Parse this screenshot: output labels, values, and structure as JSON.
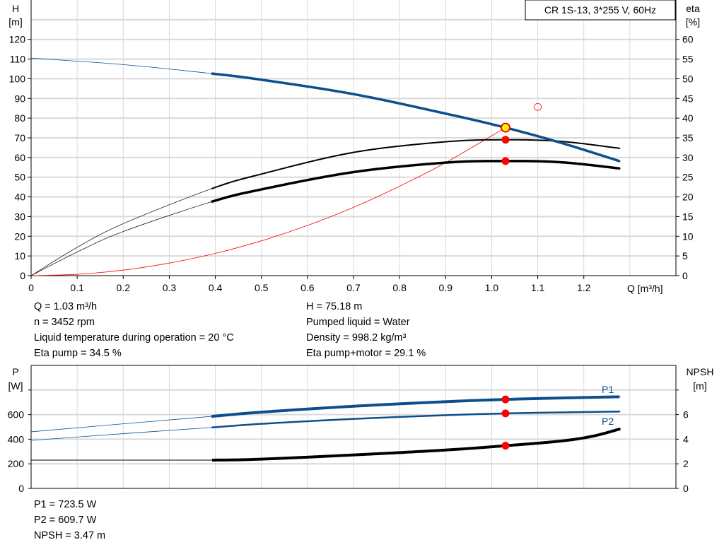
{
  "legend_box": "CR 1S-13, 3*255 V, 60Hz",
  "info_top_left": [
    "Q = 1.03 m³/h",
    "n = 3452 rpm",
    "Liquid temperature during operation = 20 °C",
    "Eta pump = 34.5 %"
  ],
  "info_top_right": [
    "H = 75.18 m",
    "Pumped liquid = Water",
    "Density = 998.2 kg/m³",
    "Eta pump+motor = 29.1 %"
  ],
  "info_bottom": [
    "P1 = 723.5 W",
    "P2 = 609.7 W",
    "NPSH = 3.47 m"
  ],
  "colors": {
    "head": "#0b4f8c",
    "power": "#0b4f8c",
    "eta": "#000000",
    "system": "#ff0000",
    "duty_point": "#ff0000",
    "operating_point_fill": "#ffff00",
    "grid": "#d9d9d9"
  },
  "chart_data": [
    {
      "type": "line",
      "xlabel": "Q [m³/h]",
      "ylabel_left": [
        "H",
        "[m]"
      ],
      "ylabel_right": [
        "eta",
        "[%]"
      ],
      "xlim": [
        0,
        1.4
      ],
      "ylim_left": [
        0,
        140
      ],
      "ylim_right": [
        0,
        70
      ],
      "xticks": [
        "0",
        "0.1",
        "0.2",
        "0.3",
        "0.4",
        "0.5",
        "0.6",
        "0.7",
        "0.8",
        "0.9",
        "1.0",
        "1.1",
        "1.2"
      ],
      "yticks_left": [
        "0",
        "10",
        "20",
        "30",
        "40",
        "50",
        "60",
        "70",
        "80",
        "90",
        "100",
        "110",
        "120"
      ],
      "yticks_right": [
        "0",
        "5",
        "10",
        "15",
        "20",
        "25",
        "30",
        "35",
        "40",
        "45",
        "50",
        "55",
        "60"
      ],
      "grid": true,
      "operating_range": [
        0.39,
        1.28
      ],
      "series": [
        {
          "key": "H",
          "axis": "left",
          "x": [
            0,
            0.2,
            0.39,
            0.5,
            0.7,
            0.9,
            1.03,
            1.15,
            1.28
          ],
          "y": [
            110.5,
            107.2,
            102.7,
            99.5,
            92.2,
            82.3,
            75.18,
            67.5,
            58.0
          ]
        },
        {
          "key": "eta_pump",
          "axis": "right",
          "x": [
            0,
            0.1,
            0.2,
            0.39,
            0.5,
            0.7,
            0.9,
            1.03,
            1.15,
            1.28
          ],
          "y": [
            0,
            7.2,
            13.2,
            22.0,
            25.8,
            31.3,
            34.0,
            34.5,
            34.1,
            32.3
          ]
        },
        {
          "key": "eta_pump_motor",
          "axis": "right",
          "x": [
            0,
            0.1,
            0.2,
            0.39,
            0.5,
            0.7,
            0.9,
            1.03,
            1.15,
            1.28
          ],
          "y": [
            0,
            6.0,
            11.2,
            18.7,
            21.9,
            26.3,
            28.7,
            29.1,
            28.8,
            27.2
          ]
        },
        {
          "key": "system",
          "axis": "left",
          "x": [
            0,
            0.1,
            0.2,
            0.3,
            0.4,
            0.5,
            0.6,
            0.7,
            0.8,
            0.9,
            1.03
          ],
          "y": [
            0,
            0.7,
            2.8,
            6.4,
            11.3,
            17.7,
            25.5,
            34.7,
            45.4,
            57.4,
            75.18
          ]
        }
      ],
      "operating_point": {
        "x": 1.03,
        "H": 75.18,
        "eta_pump": 34.5,
        "eta_pump_motor": 29.1
      },
      "open_marker": {
        "x": 1.1,
        "H": 85.7
      }
    },
    {
      "type": "line",
      "ylabel_left": [
        "P",
        "[W]"
      ],
      "ylabel_right": [
        "NPSH",
        "[m]"
      ],
      "xlim": [
        0,
        1.4
      ],
      "ylim_left": [
        0,
        1000
      ],
      "ylim_right": [
        0,
        10
      ],
      "yticks_left": [
        "0",
        "200",
        "400",
        "600"
      ],
      "yticks_right": [
        "0",
        "2",
        "4",
        "6"
      ],
      "grid": true,
      "series": [
        {
          "key": "P1",
          "name": "P1",
          "axis": "left",
          "x": [
            0,
            0.2,
            0.39,
            0.5,
            0.7,
            0.9,
            1.03,
            1.15,
            1.28
          ],
          "y": [
            460,
            525,
            585,
            620,
            668,
            705,
            723.5,
            735,
            745
          ]
        },
        {
          "key": "P2",
          "name": "P2",
          "axis": "left",
          "x": [
            0,
            0.2,
            0.39,
            0.5,
            0.7,
            0.9,
            1.03,
            1.15,
            1.28
          ],
          "y": [
            390,
            445,
            495,
            525,
            565,
            595,
            609.7,
            618,
            625
          ]
        },
        {
          "key": "NPSH",
          "axis": "right",
          "x": [
            0,
            0.2,
            0.39,
            0.5,
            0.7,
            0.9,
            1.03,
            1.15,
            1.22,
            1.28
          ],
          "y": [
            2.3,
            2.3,
            2.3,
            2.38,
            2.72,
            3.12,
            3.47,
            3.85,
            4.25,
            4.85
          ]
        }
      ],
      "operating_point": {
        "x": 1.03,
        "P1": 723.5,
        "P2": 609.7,
        "NPSH": 3.47
      }
    }
  ]
}
